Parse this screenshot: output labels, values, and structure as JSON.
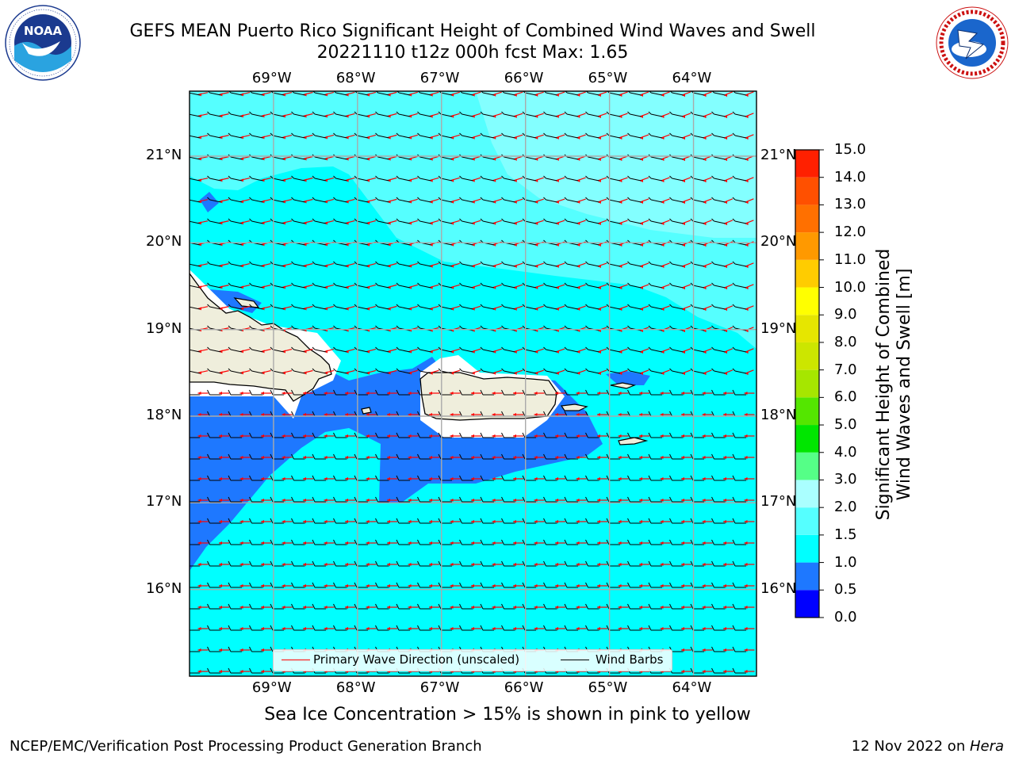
{
  "header": {
    "title_line1": "GEFS MEAN Puerto Rico Significant Height of Combined Wind Waves and Swell",
    "title_line2": "20221110 t12z 000h fcst   Max: 1.65"
  },
  "logos": {
    "left": {
      "name": "NOAA",
      "text": "NOAA",
      "ring_text": "NATIONAL OCEANIC AND ATMOSPHERIC ADMINISTRATION · U.S. DEPARTMENT OF COMMERCE"
    },
    "right": {
      "name": "National Weather Service",
      "ring_text": "NATIONAL WEATHER SERVICE"
    }
  },
  "map": {
    "lon_labels": [
      "69°W",
      "68°W",
      "67°W",
      "66°W",
      "65°W",
      "64°W"
    ],
    "lat_labels": [
      "21°N",
      "20°N",
      "19°N",
      "18°N",
      "17°N",
      "16°N"
    ],
    "lon_range": [
      -70,
      -63.25
    ],
    "lat_range": [
      15,
      21.75
    ],
    "background_color": "#00ffff",
    "land_color": "#efeedc",
    "primary_wave_color": "#ff0000",
    "wind_barb_color": "#000000"
  },
  "legend": {
    "primary_wave": "Primary Wave Direction (unscaled)",
    "wind_barbs": "Wind Barbs"
  },
  "colorbar": {
    "title_line1": "Significant Height of Combined",
    "title_line2": "Wind Waves and Swell [m]",
    "tick_labels": [
      "0.0",
      "0.5",
      "1.0",
      "1.5",
      "2.0",
      "3.0",
      "4.0",
      "5.0",
      "6.0",
      "7.0",
      "8.0",
      "9.0",
      "10.0",
      "11.0",
      "12.0",
      "13.0",
      "14.0",
      "15.0"
    ],
    "colors": [
      "#0000ff",
      "#1e78ff",
      "#00ffff",
      "#55ffff",
      "#aaffff",
      "#55ff87",
      "#00e600",
      "#54e600",
      "#a6e600",
      "#cce600",
      "#e6e600",
      "#ffff00",
      "#ffcc00",
      "#ff9900",
      "#ff7000",
      "#ff5000",
      "#ff2000"
    ]
  },
  "caption": "Sea Ice Concentration > 15% is shown in pink to yellow",
  "footer": {
    "left": "NCEP/EMC/Verification Post Processing Product Generation Branch",
    "right_prefix": "12 Nov 2022 on ",
    "right_host": "Hera"
  }
}
